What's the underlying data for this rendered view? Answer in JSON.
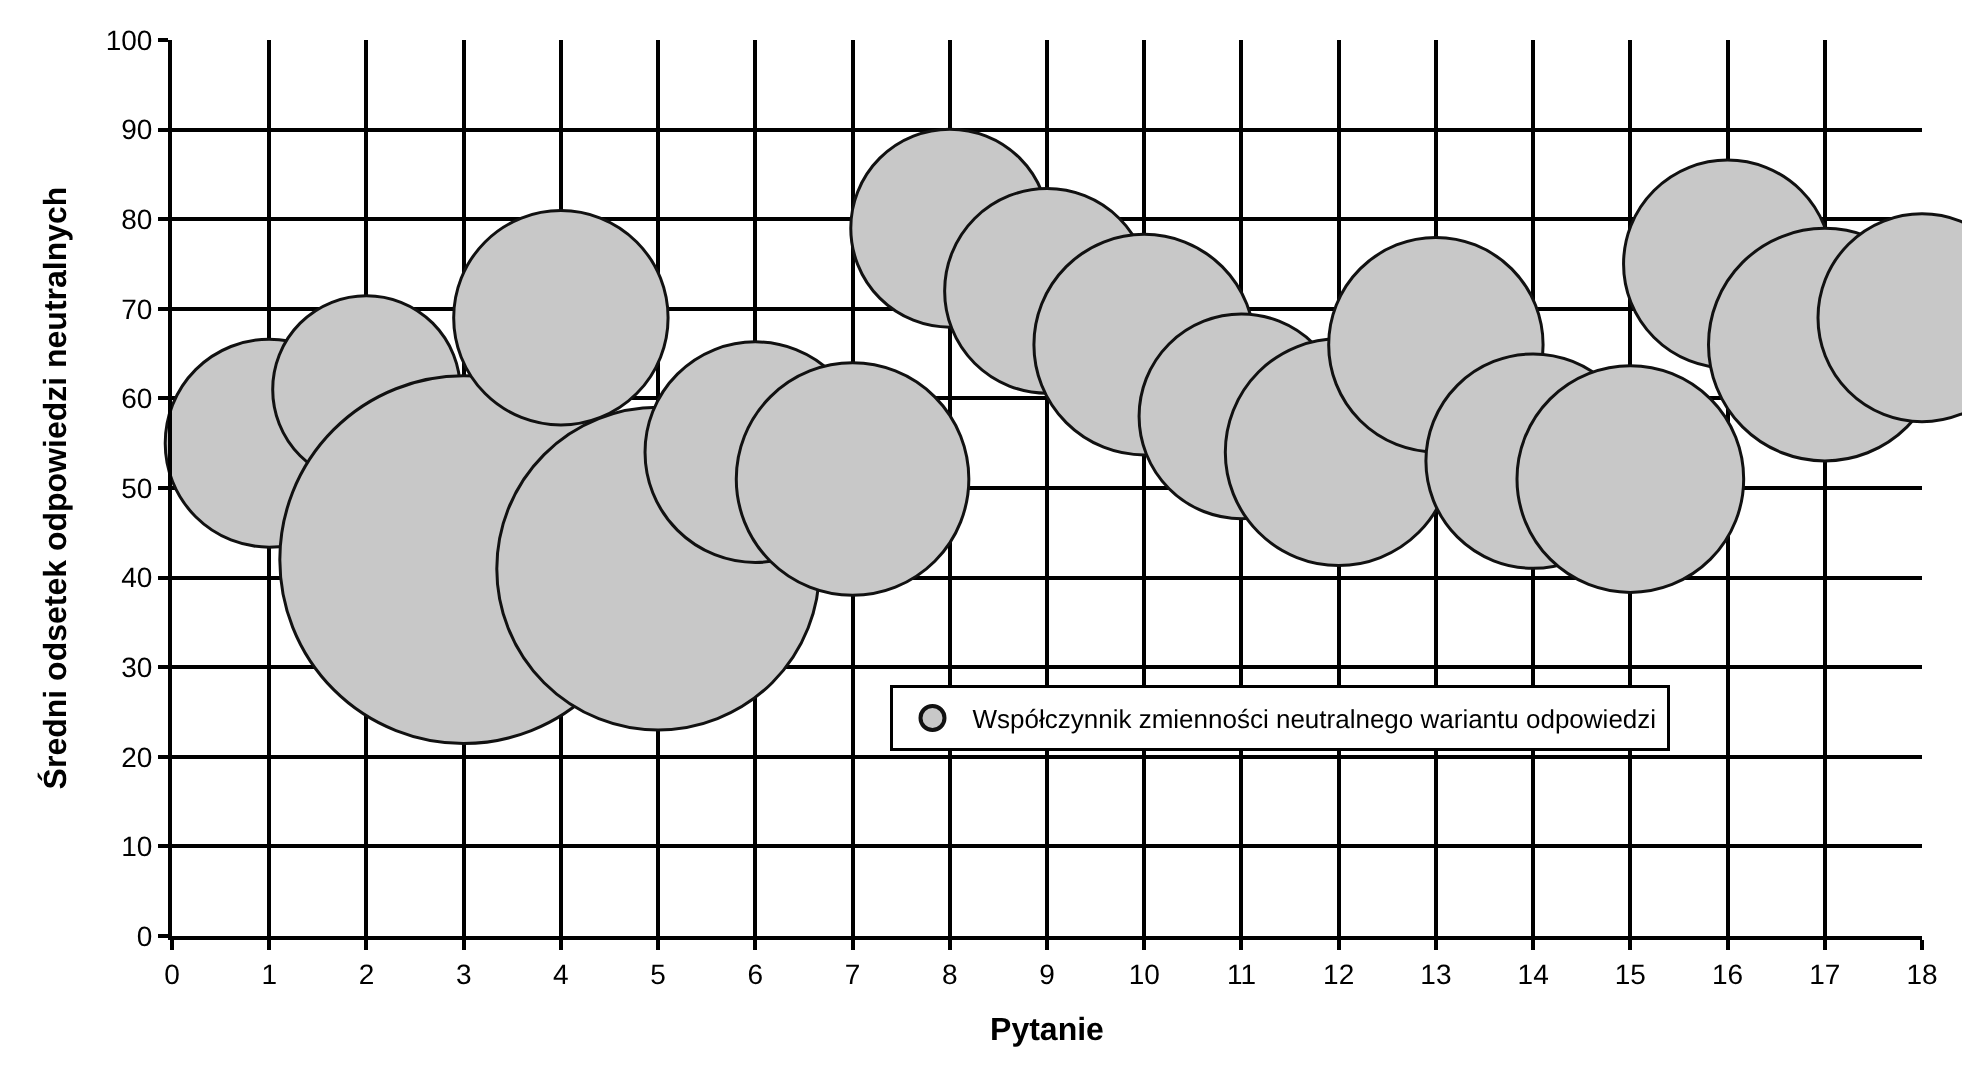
{
  "chart_data": {
    "type": "bubble",
    "xlabel": "Pytanie",
    "ylabel": "Średni odsetek odpowiedzi neutralnych",
    "x": [
      1,
      2,
      3,
      4,
      5,
      6,
      7,
      8,
      9,
      10,
      11,
      12,
      13,
      14,
      15,
      16,
      17,
      18
    ],
    "series": [
      {
        "name": "Współczynnik zmienności neutralnego wariantu odpowiedzi",
        "color": "#c8c8c8",
        "values": [
          55,
          61,
          42,
          69,
          41,
          54,
          51,
          79,
          72,
          66,
          58,
          54,
          66,
          53,
          51,
          75,
          66,
          69
        ],
        "sizes": [
          0.32,
          0.26,
          1,
          0.34,
          0.77,
          0.36,
          0.4,
          0.29,
          0.31,
          0.36,
          0.31,
          0.38,
          0.34,
          0.34,
          0.38,
          0.32,
          0.4,
          0.32
        ]
      }
    ],
    "xlim": [
      0,
      18
    ],
    "xticks": [
      0,
      1,
      2,
      3,
      4,
      5,
      6,
      7,
      8,
      9,
      10,
      11,
      12,
      13,
      14,
      15,
      16,
      17,
      18
    ],
    "ylim": [
      0,
      100
    ],
    "yticks": [
      0,
      10,
      20,
      30,
      40,
      50,
      60,
      70,
      80,
      90,
      100
    ],
    "grid": true,
    "legend": "bottom"
  }
}
